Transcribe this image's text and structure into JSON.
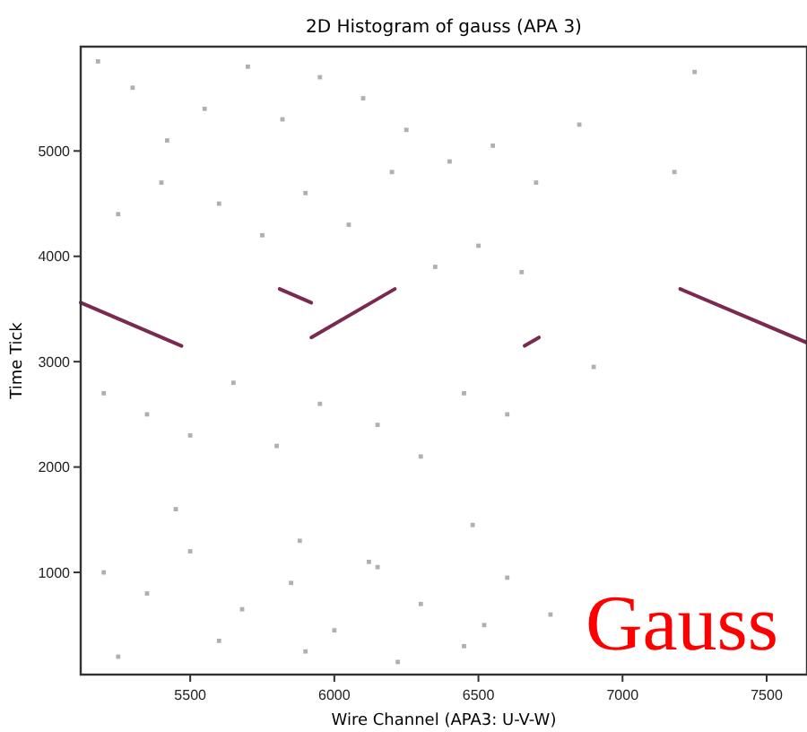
{
  "chart_data": {
    "type": "scatter",
    "title": "2D Histogram of gauss (APA 3)",
    "xlabel": "Wire Channel (APA3: U-V-W)",
    "ylabel": "Time Tick",
    "xlim": [
      5120,
      7640
    ],
    "ylim": [
      30,
      5990
    ],
    "xticks": [
      5500,
      6000,
      6500,
      7000,
      7500
    ],
    "yticks": [
      1000,
      2000,
      3000,
      4000,
      5000
    ],
    "grid": false,
    "annotations": [
      "Gauss"
    ],
    "series": [
      {
        "type": "line",
        "color": "#7a2a50",
        "x": [
          5120,
          5470
        ],
        "values": [
          3560,
          3150
        ]
      },
      {
        "type": "line",
        "color": "#7a2a50",
        "x": [
          5810,
          5920
        ],
        "values": [
          3690,
          3560
        ]
      },
      {
        "type": "line",
        "color": "#7a2a50",
        "x": [
          5920,
          6210
        ],
        "values": [
          3230,
          3690
        ]
      },
      {
        "type": "line",
        "color": "#7a2a50",
        "x": [
          6660,
          6710
        ],
        "values": [
          3150,
          3230
        ]
      },
      {
        "type": "line",
        "color": "#7a2a50",
        "x": [
          7200,
          7640
        ],
        "values": [
          3690,
          3180
        ]
      },
      {
        "type": "scatter",
        "color": "#b0b0b0",
        "marker": "square",
        "x": [
          5180,
          5300,
          5420,
          5550,
          5700,
          5820,
          5950,
          6100,
          6250,
          6400,
          6550,
          6700,
          6850,
          5250,
          5400,
          5600,
          5750,
          5900,
          6050,
          6200,
          6350,
          6500,
          6650,
          5200,
          5350,
          5500,
          5650,
          5800,
          5950,
          6150,
          6300,
          6450,
          6600,
          7250,
          7180,
          6900,
          5450,
          5880,
          6120,
          6480
        ],
        "values": [
          5850,
          5600,
          5100,
          5400,
          5800,
          5300,
          5700,
          5500,
          5200,
          4900,
          5050,
          4700,
          5250,
          4400,
          4700,
          4500,
          4200,
          4600,
          4300,
          4800,
          3900,
          4100,
          3850,
          2700,
          2500,
          2300,
          2800,
          2200,
          2600,
          2400,
          2100,
          2700,
          2500,
          5750,
          4800,
          2950,
          1600,
          1300,
          1100,
          1450
        ]
      },
      {
        "type": "scatter",
        "color": "#b0b0b0",
        "marker": "square",
        "x": [
          5200,
          5350,
          5500,
          5680,
          5850,
          6000,
          6150,
          6300,
          6450,
          6600,
          6750,
          5250,
          5600,
          5900,
          6220,
          6520
        ],
        "values": [
          1000,
          800,
          1200,
          650,
          900,
          450,
          1050,
          700,
          300,
          950,
          600,
          200,
          350,
          250,
          150,
          500
        ]
      }
    ]
  }
}
